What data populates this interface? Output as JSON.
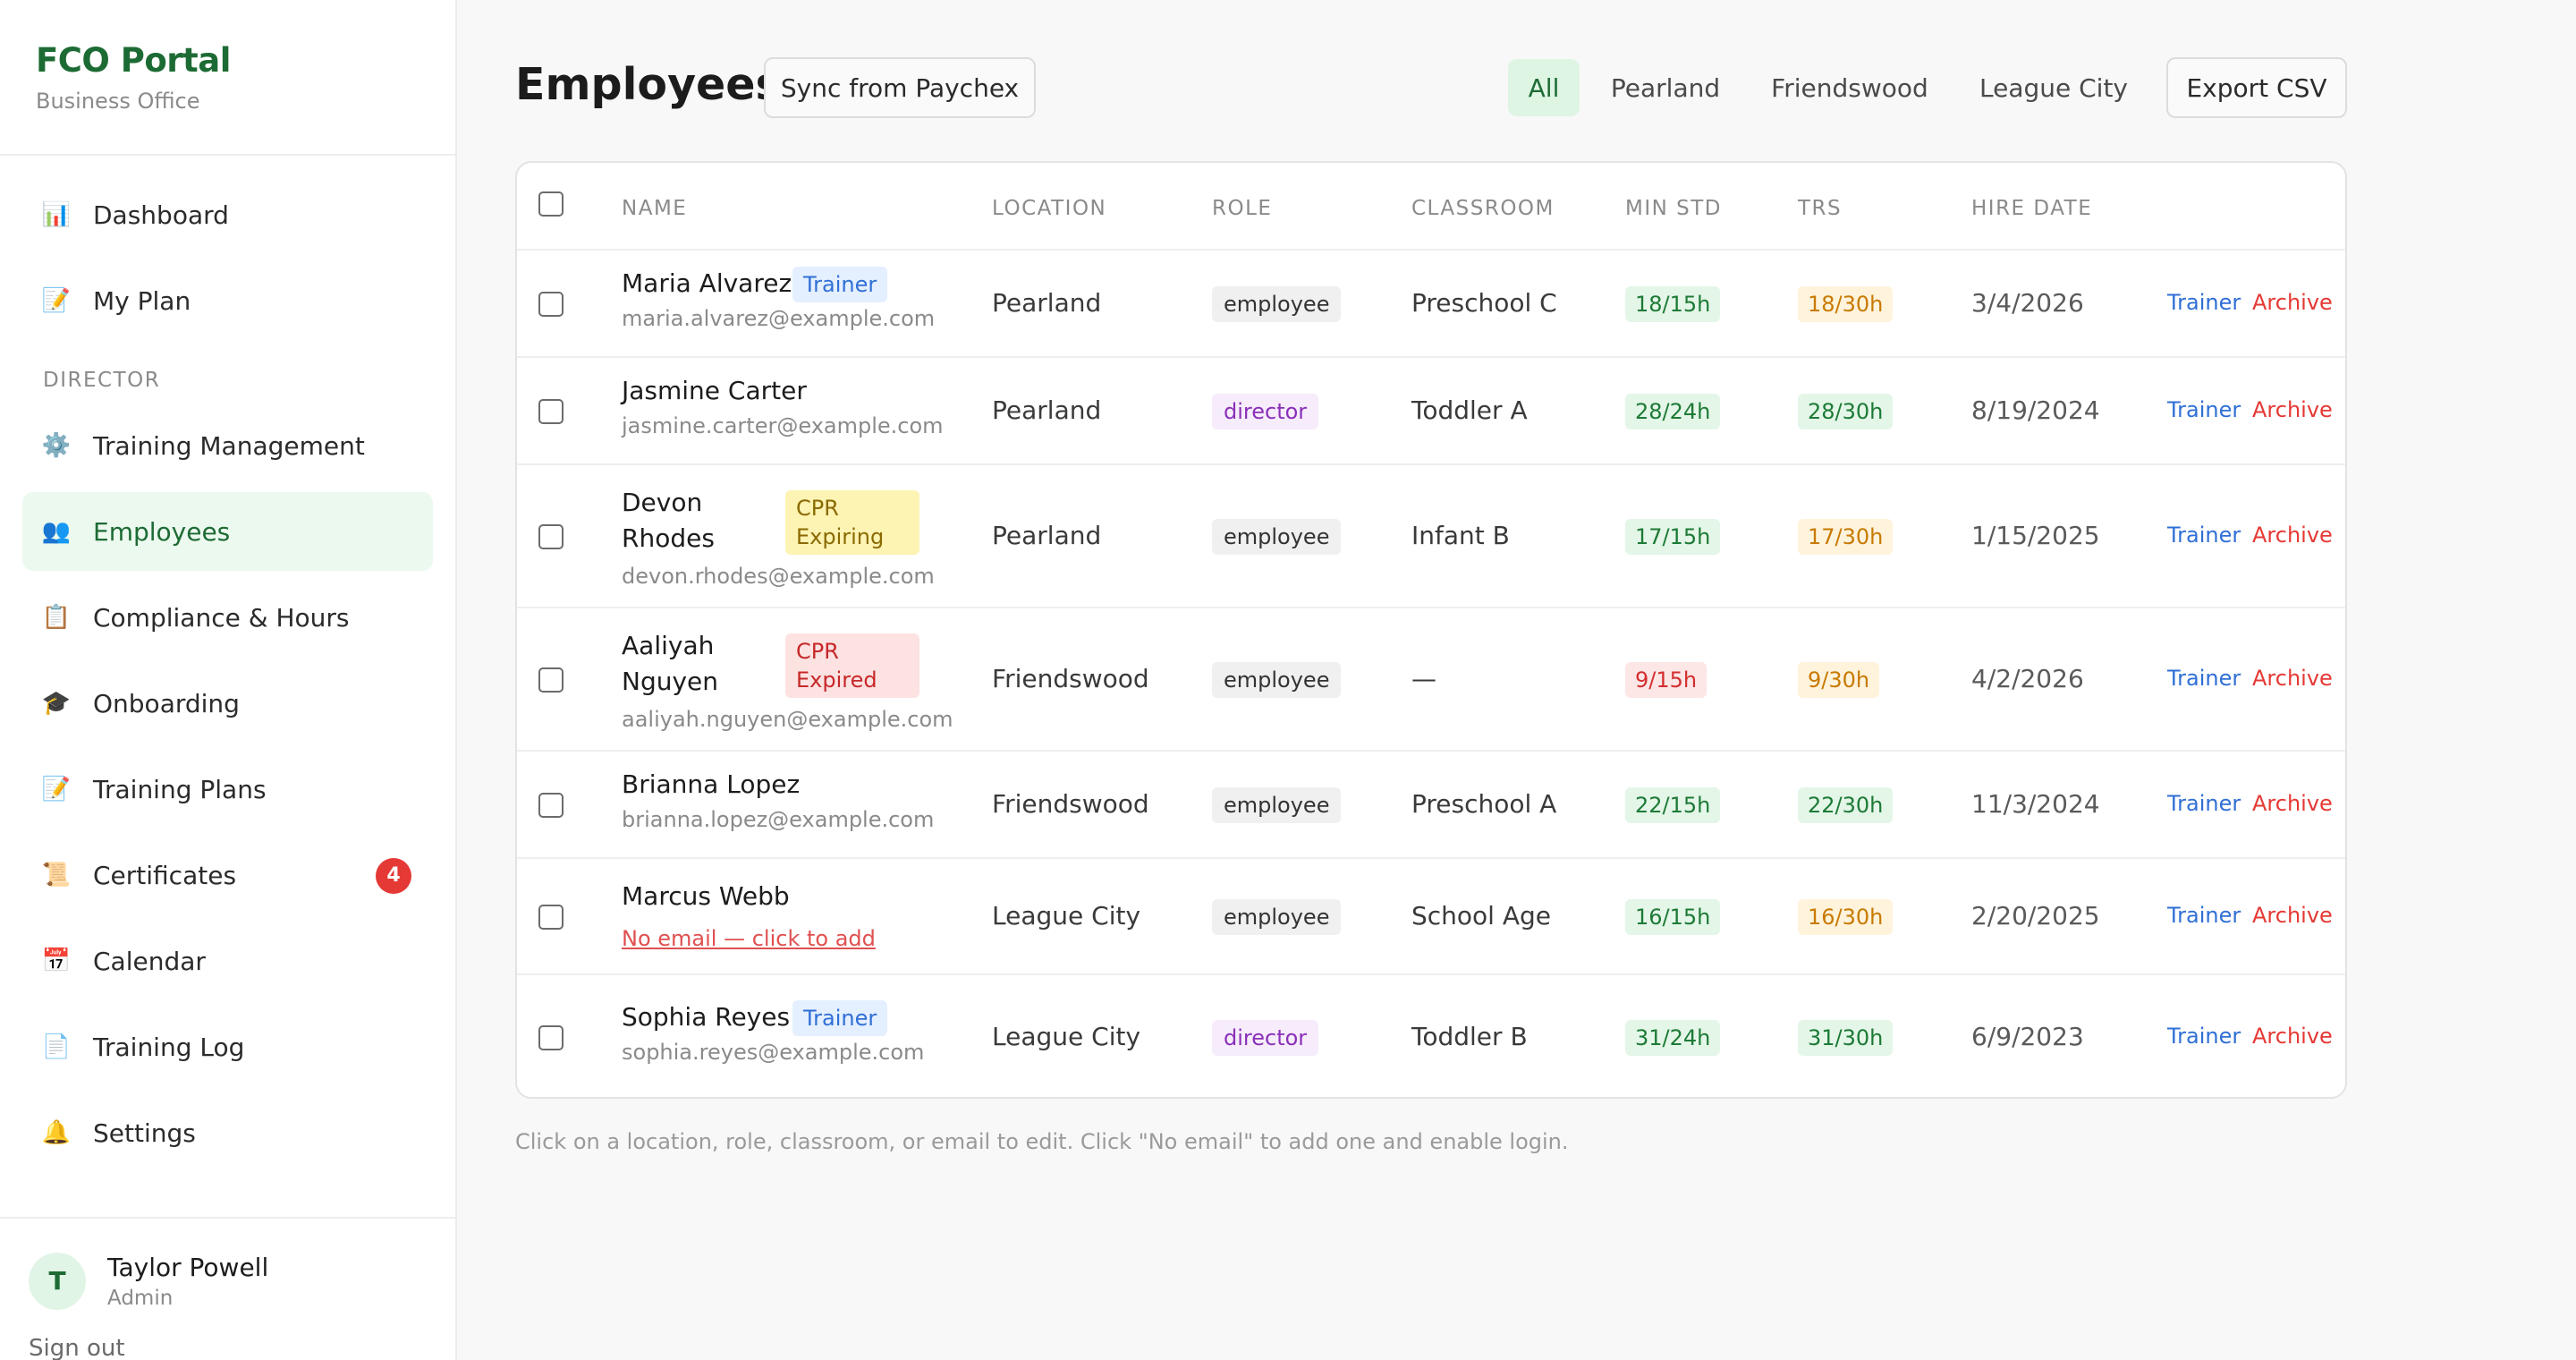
{
  "app": {
    "brand": "FCO Portal",
    "subtitle": "Business Office"
  },
  "sidebar": {
    "items_top": [
      {
        "label": "Dashboard",
        "icon": "📊",
        "icon_name": "bar-chart-icon"
      },
      {
        "label": "My Plan",
        "icon": "📝",
        "icon_name": "memo-icon"
      }
    ],
    "section": "DIRECTOR",
    "items_director": [
      {
        "label": "Training Management",
        "icon": "⚙️",
        "icon_name": "gear-icon"
      },
      {
        "label": "Employees",
        "icon": "👥",
        "icon_name": "people-icon",
        "active": true
      },
      {
        "label": "Compliance & Hours",
        "icon": "📋",
        "icon_name": "clipboard-icon"
      },
      {
        "label": "Onboarding",
        "icon": "🎓",
        "icon_name": "graduation-cap-icon"
      },
      {
        "label": "Training Plans",
        "icon": "📝",
        "icon_name": "memo-icon"
      },
      {
        "label": "Certificates",
        "icon": "📜",
        "icon_name": "scroll-icon",
        "badge": "4"
      },
      {
        "label": "Calendar",
        "icon": "📅",
        "icon_name": "calendar-icon"
      },
      {
        "label": "Training Log",
        "icon": "📄",
        "icon_name": "page-icon"
      },
      {
        "label": "Settings",
        "icon": "🔔",
        "icon_name": "bell-icon"
      }
    ],
    "user": {
      "initial": "T",
      "name": "Taylor Powell",
      "role": "Admin",
      "signout": "Sign out"
    }
  },
  "header": {
    "title": "Employees",
    "sync_label": "Sync from Paychex",
    "filters": [
      "All",
      "Pearland",
      "Friendswood",
      "League City"
    ],
    "active_filter": "All",
    "export_label": "Export CSV"
  },
  "table": {
    "columns": [
      "NAME",
      "LOCATION",
      "ROLE",
      "CLASSROOM",
      "MIN STD",
      "TRS",
      "HIRE DATE"
    ],
    "action_trainer": "Trainer",
    "action_archive": "Archive",
    "rows": [
      {
        "name": "Maria Alvarez",
        "tag": "Trainer",
        "email": "maria.alvarez@example.com",
        "location": "Pearland",
        "role": "employee",
        "classroom": "Preschool C",
        "min_std": "18/15h",
        "min_std_status": "green",
        "trs": "18/30h",
        "trs_status": "amber",
        "hire_date": "3/4/2026"
      },
      {
        "name": "Jasmine Carter",
        "email": "jasmine.carter@example.com",
        "location": "Pearland",
        "role": "director",
        "classroom": "Toddler A",
        "min_std": "28/24h",
        "min_std_status": "green",
        "trs": "28/30h",
        "trs_status": "green",
        "hire_date": "8/19/2024"
      },
      {
        "name": "Devon Rhodes",
        "tag": "CPR Expiring",
        "email": "devon.rhodes@example.com",
        "location": "Pearland",
        "role": "employee",
        "classroom": "Infant B",
        "min_std": "17/15h",
        "min_std_status": "green",
        "trs": "17/30h",
        "trs_status": "amber",
        "hire_date": "1/15/2025"
      },
      {
        "name": "Aaliyah Nguyen",
        "tag": "CPR Expired",
        "email": "aaliyah.nguyen@example.com",
        "location": "Friendswood",
        "role": "employee",
        "classroom": "—",
        "min_std": "9/15h",
        "min_std_status": "red",
        "trs": "9/30h",
        "trs_status": "amber",
        "hire_date": "4/2/2026"
      },
      {
        "name": "Brianna Lopez",
        "email": "brianna.lopez@example.com",
        "location": "Friendswood",
        "role": "employee",
        "classroom": "Preschool A",
        "min_std": "22/15h",
        "min_std_status": "green",
        "trs": "22/30h",
        "trs_status": "green",
        "hire_date": "11/3/2024"
      },
      {
        "name": "Marcus Webb",
        "email_missing": "No email — click to add",
        "location": "League City",
        "role": "employee",
        "classroom": "School Age",
        "min_std": "16/15h",
        "min_std_status": "green",
        "trs": "16/30h",
        "trs_status": "amber",
        "hire_date": "2/20/2025"
      },
      {
        "name": "Sophia Reyes",
        "tag": "Trainer",
        "email": "sophia.reyes@example.com",
        "location": "League City",
        "role": "director",
        "classroom": "Toddler B",
        "min_std": "31/24h",
        "min_std_status": "green",
        "trs": "31/30h",
        "trs_status": "green",
        "hire_date": "6/9/2023"
      }
    ]
  },
  "footnote": "Click on a location, role, classroom, or email to edit. Click \"No email\" to add one and enable login."
}
